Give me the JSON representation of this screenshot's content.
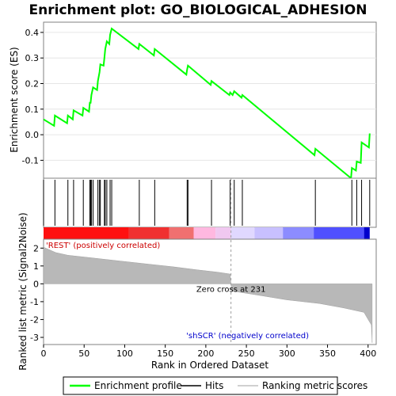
{
  "chart_data": {
    "type": "line",
    "title": "Enrichment plot: GO_BIOLOGICAL_ADHESION",
    "xlabel": "Rank in Ordered Dataset",
    "ylabel_top": "Enrichment score (ES)",
    "ylabel_bottom": "Ranked list metric (Signal2Noise)",
    "xlim": [
      0,
      410
    ],
    "es_ylim": [
      -0.17,
      0.44
    ],
    "metric_ylim": [
      -3.4,
      2.5
    ],
    "x_ticks": [
      "0",
      "50",
      "100",
      "150",
      "200",
      "250",
      "300",
      "350",
      "400"
    ],
    "es_ticks": [
      "0.4",
      "0.3",
      "0.2",
      "0.1",
      "0.0",
      "-0.1"
    ],
    "metric_ticks": [
      "2",
      "1",
      "0",
      "-1",
      "-2",
      "-3"
    ],
    "es_series": {
      "name": "Enrichment profile",
      "color": "#00ff00",
      "points": [
        [
          0,
          0.06
        ],
        [
          13,
          0.035
        ],
        [
          14,
          0.075
        ],
        [
          29,
          0.045
        ],
        [
          30,
          0.075
        ],
        [
          36,
          0.06
        ],
        [
          37,
          0.095
        ],
        [
          48,
          0.075
        ],
        [
          49,
          0.105
        ],
        [
          56,
          0.09
        ],
        [
          57,
          0.125
        ],
        [
          58,
          0.125
        ],
        [
          59,
          0.155
        ],
        [
          61,
          0.185
        ],
        [
          66,
          0.175
        ],
        [
          67,
          0.21
        ],
        [
          69,
          0.245
        ],
        [
          70,
          0.275
        ],
        [
          74,
          0.27
        ],
        [
          75,
          0.3
        ],
        [
          76,
          0.335
        ],
        [
          78,
          0.365
        ],
        [
          81,
          0.355
        ],
        [
          82,
          0.39
        ],
        [
          84,
          0.415
        ],
        [
          117,
          0.335
        ],
        [
          118,
          0.355
        ],
        [
          136,
          0.31
        ],
        [
          137,
          0.335
        ],
        [
          176,
          0.235
        ],
        [
          177,
          0.255
        ],
        [
          178,
          0.27
        ],
        [
          206,
          0.195
        ],
        [
          207,
          0.21
        ],
        [
          229,
          0.155
        ],
        [
          230,
          0.165
        ],
        [
          233,
          0.155
        ],
        [
          235,
          0.17
        ],
        [
          244,
          0.145
        ],
        [
          245,
          0.155
        ],
        [
          334,
          -0.08
        ],
        [
          335,
          -0.055
        ],
        [
          379,
          -0.17
        ],
        [
          380,
          -0.13
        ],
        [
          385,
          -0.14
        ],
        [
          386,
          -0.105
        ],
        [
          391,
          -0.11
        ],
        [
          392,
          -0.03
        ],
        [
          401,
          -0.05
        ],
        [
          402,
          0.005
        ]
      ]
    },
    "hits": [
      0,
      14,
      30,
      37,
      49,
      57,
      58,
      59,
      61,
      67,
      69,
      70,
      75,
      76,
      78,
      82,
      84,
      118,
      137,
      177,
      178,
      207,
      230,
      235,
      245,
      335,
      380,
      386,
      392,
      402
    ],
    "ranking_metric": {
      "name": "Ranking metric scores",
      "color": "#c0c0c0",
      "points": [
        [
          0,
          2.05
        ],
        [
          5,
          1.95
        ],
        [
          15,
          1.75
        ],
        [
          30,
          1.6
        ],
        [
          50,
          1.5
        ],
        [
          70,
          1.4
        ],
        [
          100,
          1.25
        ],
        [
          130,
          1.1
        ],
        [
          160,
          0.95
        ],
        [
          190,
          0.78
        ],
        [
          215,
          0.65
        ],
        [
          230,
          0.55
        ],
        [
          231,
          0.0
        ],
        [
          232,
          -0.4
        ],
        [
          260,
          -0.6
        ],
        [
          300,
          -0.9
        ],
        [
          340,
          -1.1
        ],
        [
          370,
          -1.35
        ],
        [
          395,
          -1.6
        ],
        [
          400,
          -2.0
        ],
        [
          404,
          -2.3
        ],
        [
          405,
          -3.3
        ]
      ]
    },
    "zero_cross": 231,
    "zero_cross_label": "Zero cross at 231",
    "rest_label": "'REST' (positively correlated)",
    "scr_label": "'shSCR' (negatively correlated)",
    "legend": [
      {
        "label": "Enrichment profile",
        "color": "#00ff00"
      },
      {
        "label": "Hits",
        "color": "#000000"
      },
      {
        "label": "Ranking metric scores",
        "color": "#c0c0c0"
      }
    ],
    "heat_colors": [
      "#ff0000",
      "#f06060",
      "#ffb0e0",
      "#e0d0ff",
      "#8080ff",
      "#0000dd"
    ]
  }
}
